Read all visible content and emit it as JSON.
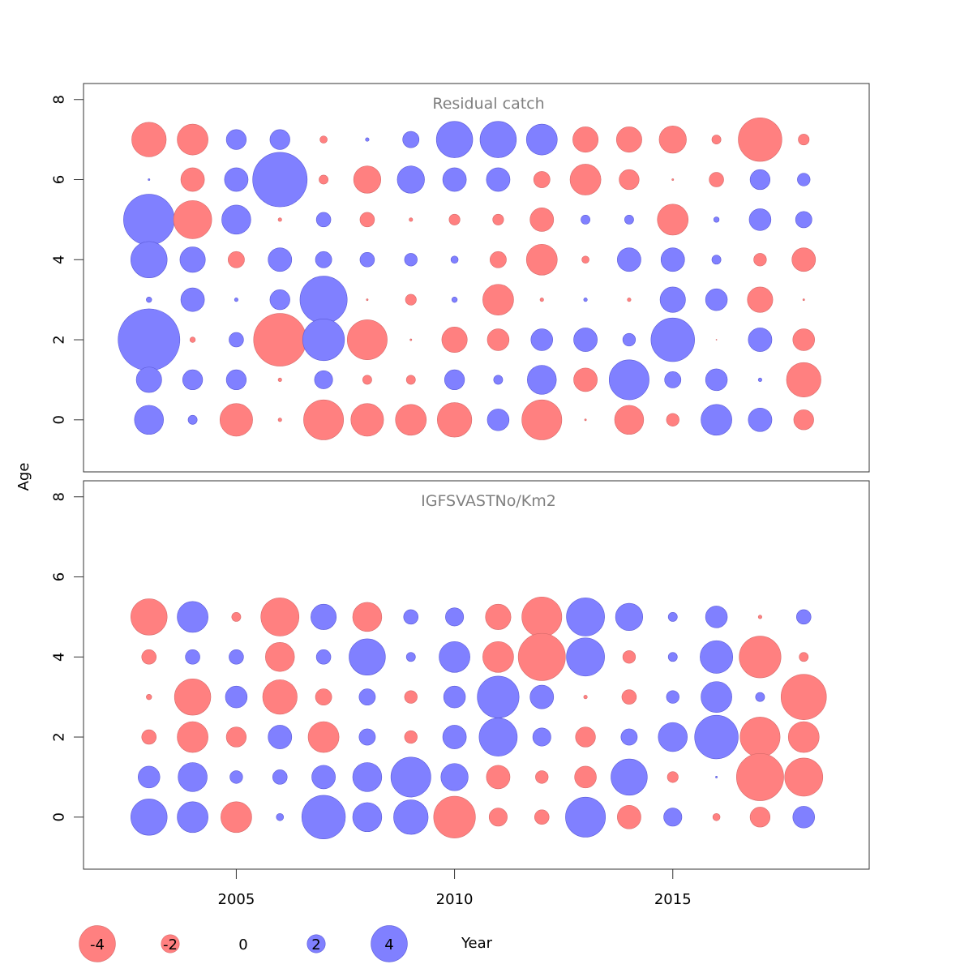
{
  "chart_data": {
    "type": "scatter",
    "subtype": "bubble",
    "xlabel": "Year",
    "ylabel": "Age",
    "xlim": [
      2001.5,
      2019.5
    ],
    "x_ticks": [
      2005,
      2010,
      2015
    ],
    "years": [
      2003,
      2004,
      2005,
      2006,
      2007,
      2008,
      2009,
      2010,
      2011,
      2012,
      2013,
      2014,
      2015,
      2016,
      2017,
      2018
    ],
    "colors": {
      "positive": "#8080ff",
      "negative": "#ff8080",
      "positive_stroke": "#5a5ad8",
      "negative_stroke": "#d86a6a"
    },
    "panels": [
      {
        "title": "Residual catch",
        "ylim": [
          -1.3,
          8.4
        ],
        "y_ticks": [
          0,
          2,
          4,
          6,
          8
        ],
        "ages": [
          7,
          6,
          5,
          4,
          3,
          2,
          1,
          0
        ],
        "values": [
          [
            -1.9,
            -1.7,
            1.1,
            1.1,
            -0.4,
            0.2,
            0.9,
            2.0,
            2.0,
            1.7,
            -1.4,
            -1.4,
            -1.5,
            -0.5,
            -2.4,
            -0.6
          ],
          [
            0.1,
            -1.3,
            1.3,
            3.0,
            -0.5,
            -1.5,
            1.5,
            1.3,
            1.3,
            -0.9,
            -1.7,
            -1.1,
            -0.1,
            -0.8,
            1.1,
            0.7
          ],
          [
            2.8,
            -2.1,
            1.6,
            -0.2,
            0.8,
            -0.8,
            -0.2,
            -0.6,
            -0.6,
            -1.3,
            0.5,
            0.5,
            -1.7,
            0.3,
            1.2,
            0.9
          ],
          [
            2.0,
            1.4,
            -0.9,
            1.3,
            0.9,
            0.8,
            0.7,
            0.4,
            -0.9,
            -1.7,
            -0.4,
            1.3,
            1.3,
            0.5,
            -0.7,
            -1.3
          ],
          [
            0.3,
            1.3,
            0.2,
            1.1,
            2.6,
            -0.1,
            -0.6,
            0.3,
            -1.7,
            -0.2,
            0.2,
            -0.2,
            1.4,
            1.2,
            -1.4,
            -0.1
          ],
          [
            3.4,
            -0.3,
            0.8,
            -2.9,
            2.3,
            -2.2,
            -0.1,
            -1.4,
            -1.2,
            1.2,
            1.3,
            0.7,
            2.4,
            -0.05,
            1.3,
            -1.2
          ],
          [
            1.4,
            1.1,
            1.1,
            -0.2,
            1.0,
            -0.5,
            -0.5,
            1.1,
            0.5,
            1.6,
            -1.3,
            2.2,
            0.9,
            1.2,
            0.2,
            -1.9
          ],
          [
            1.6,
            0.5,
            -1.8,
            -0.2,
            -2.2,
            -1.8,
            -1.7,
            -1.9,
            1.2,
            -2.2,
            -0.1,
            -1.6,
            -0.7,
            1.7,
            1.3,
            -1.1
          ]
        ]
      },
      {
        "title": "IGFSVASTNo/Km2",
        "ylim": [
          -1.3,
          8.4
        ],
        "y_ticks": [
          0,
          2,
          4,
          6,
          8
        ],
        "ages": [
          5,
          4,
          3,
          2,
          1,
          0
        ],
        "values": [
          [
            -2.0,
            1.7,
            -0.5,
            -2.1,
            1.4,
            -1.6,
            0.8,
            1.0,
            -1.4,
            -2.2,
            2.1,
            1.5,
            0.5,
            1.2,
            -0.2,
            0.8
          ],
          [
            -0.8,
            0.8,
            0.8,
            -1.6,
            0.8,
            2.0,
            0.5,
            1.7,
            -1.7,
            -2.6,
            2.1,
            -0.7,
            0.5,
            1.8,
            -2.3,
            -0.5
          ],
          [
            -0.3,
            -2.0,
            1.2,
            -1.9,
            -0.9,
            0.9,
            -0.7,
            1.2,
            2.3,
            1.3,
            -0.2,
            -0.8,
            0.7,
            1.7,
            0.5,
            -2.5
          ],
          [
            -0.8,
            -1.7,
            -1.1,
            1.3,
            -1.7,
            0.9,
            -0.7,
            1.3,
            2.1,
            1.0,
            -1.1,
            0.9,
            1.6,
            2.4,
            -2.2,
            -1.7
          ],
          [
            1.2,
            1.6,
            0.7,
            0.8,
            1.3,
            1.6,
            2.2,
            1.5,
            -1.3,
            -0.7,
            -1.2,
            2.0,
            -0.6,
            0.1,
            -2.6,
            -2.1
          ],
          [
            2.0,
            1.7,
            -1.7,
            0.4,
            2.4,
            1.6,
            1.9,
            -2.3,
            -1.0,
            -0.8,
            2.2,
            -1.3,
            1.0,
            -0.4,
            -1.1,
            1.2
          ]
        ]
      }
    ],
    "legend": {
      "values": [
        -4,
        -2,
        0,
        2,
        4
      ],
      "labels": [
        "-4",
        "-2",
        "0",
        "2",
        "4"
      ],
      "placement": "bottom"
    }
  }
}
